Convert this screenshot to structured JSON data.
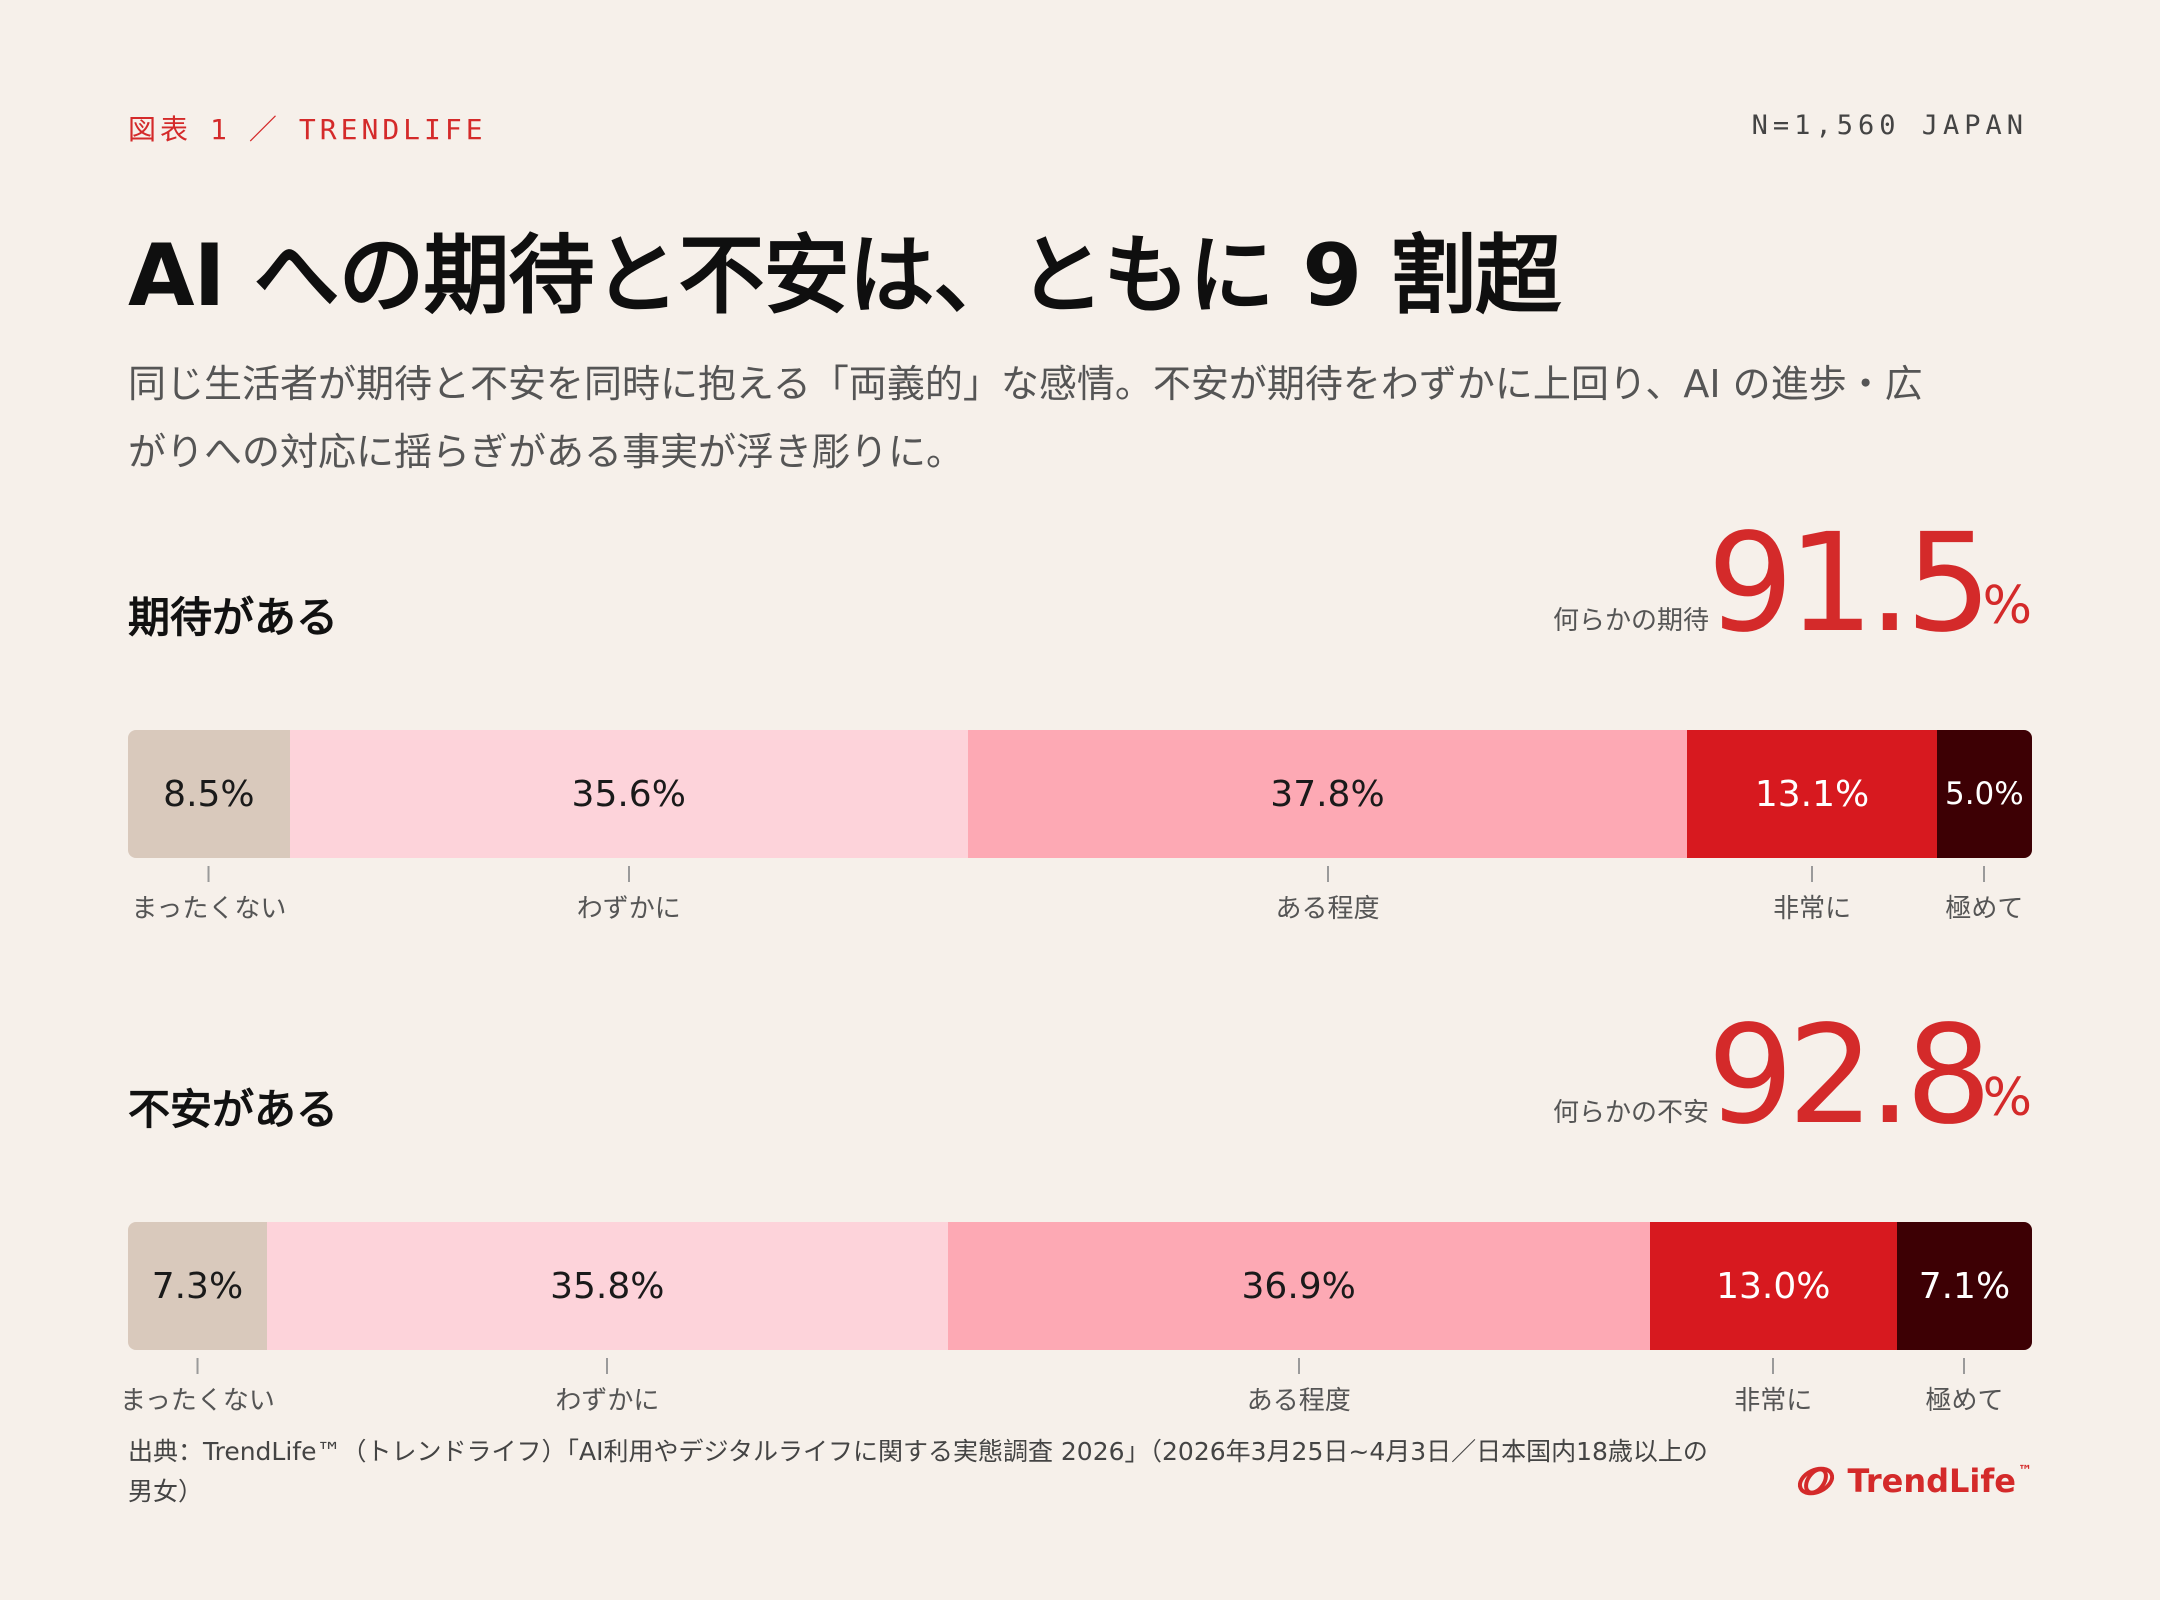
{
  "header": {
    "figure": "図表",
    "number": "1",
    "separator": "／",
    "brand": "TRENDLIFE",
    "sample": "N=1,560 JAPAN"
  },
  "title": "AI への期待と不安は、ともに 9 割超",
  "subtitle": "同じ生活者が期待と不安を同時に抱える「両義的」な感情。不安が期待をわずかに上回り、AI の進歩・広がりへの対応に揺らぎがある事実が浮き彫りに。",
  "sections": [
    {
      "label": "期待がある",
      "summary_label": "何らかの期待",
      "summary_value": "91.5",
      "summary_unit": "%"
    },
    {
      "label": "不安がある",
      "summary_label": "何らかの不安",
      "summary_value": "92.8",
      "summary_unit": "%"
    }
  ],
  "chart_data": {
    "type": "bar",
    "orientation": "horizontal-stacked-100",
    "categories": [
      "期待がある",
      "不安がある"
    ],
    "series": [
      {
        "name": "まったくない",
        "values": [
          8.5,
          7.3
        ],
        "labels": [
          "8.5%",
          "7.3%"
        ],
        "color": "#d9c9bc",
        "text_color": "#1a1a1a"
      },
      {
        "name": "わずかに",
        "values": [
          35.6,
          35.8
        ],
        "labels": [
          "35.6%",
          "35.8%"
        ],
        "color": "#fdd3da",
        "text_color": "#1a1a1a"
      },
      {
        "name": "ある程度",
        "values": [
          37.8,
          36.9
        ],
        "labels": [
          "37.8%",
          "36.9%"
        ],
        "color": "#fda9b4",
        "text_color": "#1a1a1a"
      },
      {
        "name": "非常に",
        "values": [
          13.1,
          13.0
        ],
        "labels": [
          "13.1%",
          "13.0%"
        ],
        "color": "#d7191f",
        "text_color": "#ffffff"
      },
      {
        "name": "極めて",
        "values": [
          5.0,
          7.1
        ],
        "labels": [
          "5.0%",
          "7.1%"
        ],
        "color": "#3d0004",
        "text_color": "#ffffff"
      }
    ],
    "xlim": [
      0,
      100
    ]
  },
  "footer": "出典：TrendLife™（トレンドライフ）「AI利用やデジタルライフに関する実態調査 2026」（2026年3月25日~4月3日／日本国内18歳以上の男女）",
  "brand_logo": {
    "name": "TrendLife",
    "tm": "™",
    "color": "#d42a2a"
  }
}
